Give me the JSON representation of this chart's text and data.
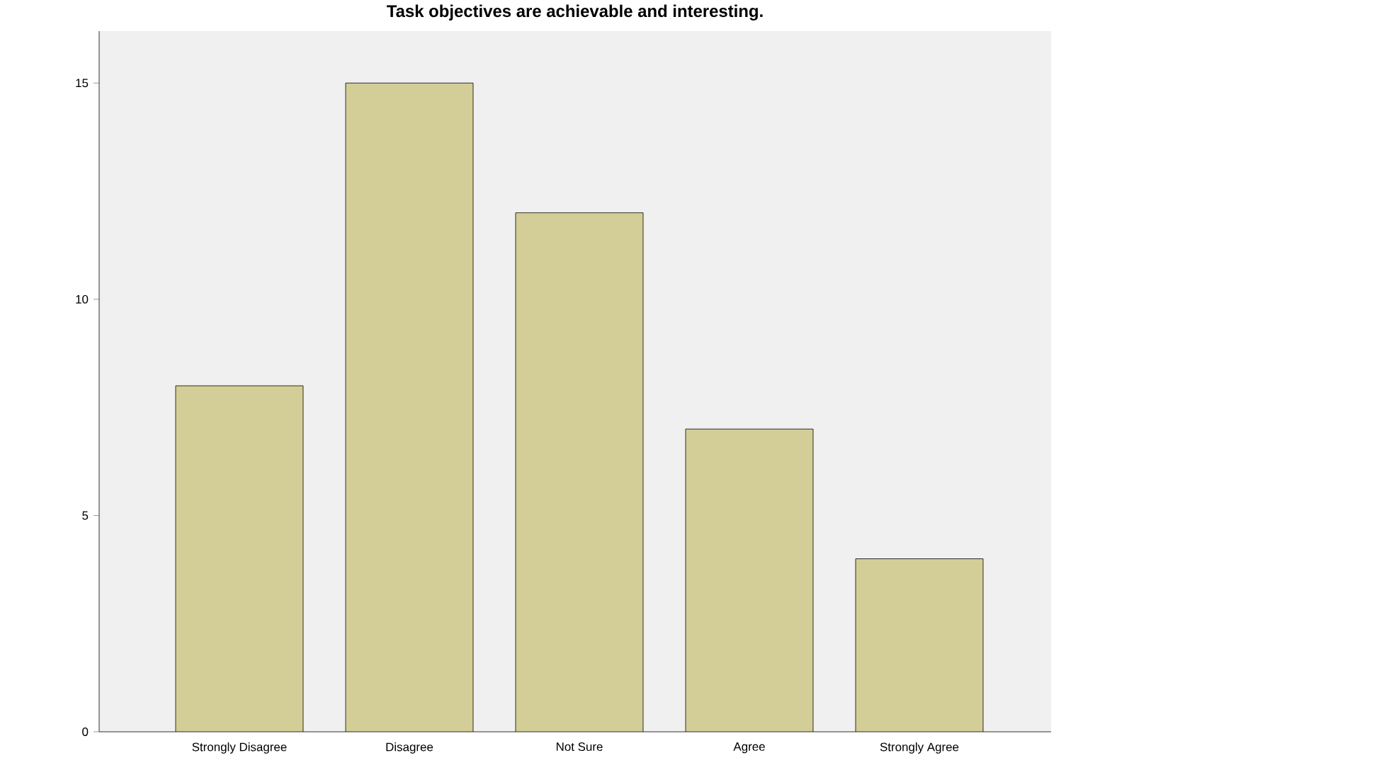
{
  "chart_data": {
    "type": "bar",
    "title": "Task objectives are achievable and interesting.",
    "categories": [
      "Strongly Disagree",
      "Disagree",
      "Not Sure",
      "Agree",
      "Strongly Agree"
    ],
    "values": [
      8,
      15,
      12,
      7,
      4
    ],
    "color": "#d3ce97",
    "ylim": [
      0,
      16.2
    ],
    "yticks": [
      0,
      5,
      10,
      15
    ],
    "grid": false
  }
}
